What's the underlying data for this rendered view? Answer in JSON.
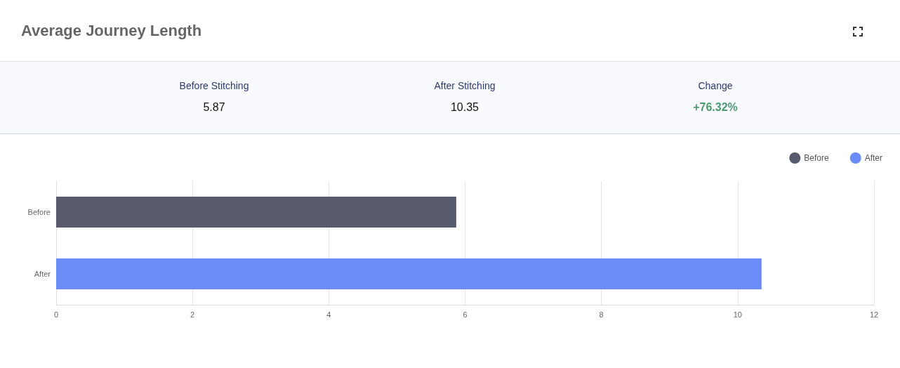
{
  "chart_data": {
    "type": "bar",
    "title": "Average Journey Length",
    "orientation": "horizontal",
    "stacked": true,
    "categories": [
      "Before",
      "After"
    ],
    "series": [
      {
        "name": "Before",
        "color": "#575a6c",
        "values": [
          5.87,
          null
        ]
      },
      {
        "name": "After",
        "color": "#6b8cf7",
        "values": [
          null,
          10.35
        ]
      }
    ],
    "xlim": [
      0,
      12
    ],
    "xticks": [
      0,
      2,
      4,
      6,
      8,
      10,
      12
    ],
    "grid": "x",
    "legend": "top right",
    "annotations": [
      "Before Stitching",
      "5.87",
      "After Stitching",
      "10.35",
      "Change",
      "+76.32%"
    ]
  }
}
